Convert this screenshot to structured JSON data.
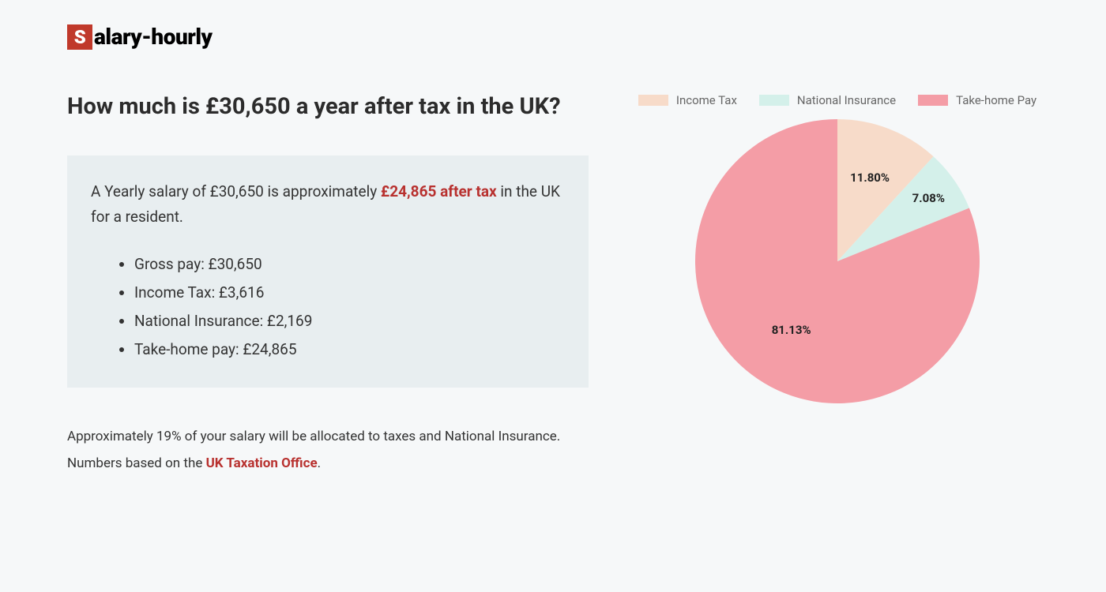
{
  "logo": {
    "first_letter": "S",
    "rest": "alary-hourly"
  },
  "heading": "How much is £30,650 a year after tax in the UK?",
  "summary": {
    "intro_before": "A Yearly salary of £30,650 is approximately ",
    "intro_highlight": "£24,865 after tax",
    "intro_after": " in the UK for a resident.",
    "items": [
      "Gross pay: £30,650",
      "Income Tax: £3,616",
      "National Insurance: £2,169",
      "Take-home pay: £24,865"
    ]
  },
  "footer": {
    "line1": "Approximately 19% of your salary will be allocated to taxes and National Insurance.",
    "line2_before": "Numbers based on the ",
    "line2_link": "UK Taxation Office",
    "line2_after": "."
  },
  "chart": {
    "type": "pie",
    "radius": 180,
    "slices": [
      {
        "label": "Income Tax",
        "value": 11.8,
        "color": "#f7dbc9",
        "label_text": "11.80%"
      },
      {
        "label": "National Insurance",
        "value": 7.08,
        "color": "#d4f0ea",
        "label_text": "7.08%"
      },
      {
        "label": "Take-home Pay",
        "value": 81.13,
        "color": "#f49da6",
        "label_text": "81.13%"
      }
    ],
    "background_color": "#f6f8f9",
    "label_fontsize": 15,
    "label_fontweight": "700",
    "legend_swatch_width": 38,
    "legend_swatch_height": 14
  }
}
